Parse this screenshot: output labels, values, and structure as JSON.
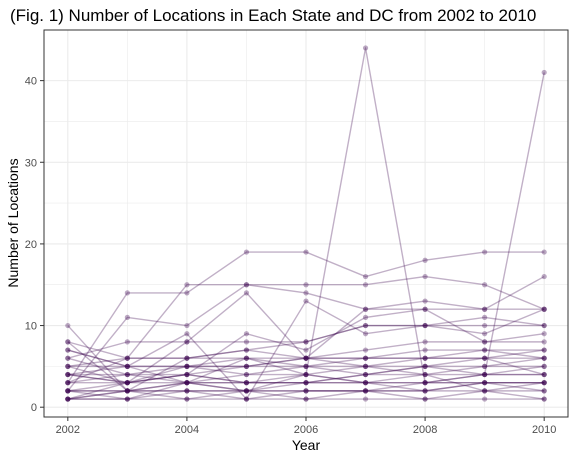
{
  "chart_data": {
    "type": "line",
    "title": "(Fig. 1) Number of Locations in Each State and DC from 2002 to 2010",
    "xlabel": "Year",
    "ylabel": "Number of Locations",
    "x": [
      2002,
      2003,
      2004,
      2005,
      2006,
      2007,
      2008,
      2009,
      2010
    ],
    "xticks": [
      2002,
      2004,
      2006,
      2008,
      2010
    ],
    "yticks": [
      0,
      10,
      20,
      30,
      40
    ],
    "xlim": [
      2001.6,
      2010.4
    ],
    "ylim": [
      -1.2,
      46.2
    ],
    "grid": true,
    "legend": "none",
    "line_color": "#3f0a52",
    "series": [
      {
        "values": [
          10,
          2,
          3,
          2,
          4,
          44,
          3,
          4,
          41
        ]
      },
      {
        "values": [
          3,
          14,
          14,
          19,
          19,
          16,
          18,
          19,
          19
        ]
      },
      {
        "values": [
          2,
          11,
          10,
          15,
          15,
          15,
          16,
          15,
          12
        ]
      },
      {
        "values": [
          8,
          6,
          15,
          15,
          14,
          12,
          13,
          12,
          12
        ]
      },
      {
        "values": [
          6,
          8,
          8,
          14,
          6,
          12,
          12,
          12,
          16
        ]
      },
      {
        "values": [
          7,
          5,
          9,
          1,
          13,
          9,
          10,
          10,
          10
        ]
      },
      {
        "values": [
          4,
          3,
          8,
          8,
          8,
          10,
          10,
          9,
          12
        ]
      },
      {
        "values": [
          1,
          3,
          4,
          9,
          7,
          11,
          12,
          8,
          9
        ]
      },
      {
        "values": [
          5,
          6,
          6,
          7,
          8,
          10,
          10,
          11,
          10
        ]
      },
      {
        "values": [
          3,
          6,
          6,
          7,
          6,
          7,
          8,
          8,
          8
        ]
      },
      {
        "values": [
          7,
          5,
          5,
          5,
          6,
          5,
          6,
          6,
          6
        ]
      },
      {
        "values": [
          8,
          2,
          6,
          6,
          5,
          6,
          6,
          6,
          7
        ]
      },
      {
        "values": [
          5,
          3,
          4,
          5,
          5,
          5,
          5,
          5,
          6
        ]
      },
      {
        "values": [
          4,
          4,
          5,
          4,
          4,
          5,
          4,
          5,
          5
        ]
      },
      {
        "values": [
          2,
          2,
          3,
          3,
          3,
          4,
          4,
          4,
          4
        ]
      },
      {
        "values": [
          3,
          3,
          3,
          3,
          3,
          3,
          3,
          3,
          3
        ]
      },
      {
        "values": [
          2,
          2,
          2,
          2,
          2,
          2,
          2,
          3,
          3
        ]
      },
      {
        "values": [
          1,
          1,
          1,
          1,
          1,
          1,
          1,
          1,
          1
        ]
      },
      {
        "values": [
          1,
          2,
          2,
          2,
          2,
          2,
          3,
          3,
          2
        ]
      },
      {
        "values": [
          4,
          5,
          3,
          6,
          4,
          3,
          3,
          4,
          5
        ]
      },
      {
        "values": [
          6,
          4,
          4,
          3,
          3,
          4,
          5,
          6,
          4
        ]
      },
      {
        "values": [
          2,
          3,
          4,
          3,
          4,
          3,
          4,
          2,
          3
        ]
      },
      {
        "values": [
          1,
          1,
          2,
          1,
          2,
          2,
          2,
          2,
          2
        ]
      },
      {
        "values": [
          3,
          4,
          3,
          4,
          5,
          4,
          5,
          4,
          4
        ]
      },
      {
        "values": [
          5,
          5,
          5,
          6,
          6,
          6,
          7,
          7,
          7
        ]
      },
      {
        "values": [
          2,
          1,
          3,
          2,
          3,
          3,
          2,
          3,
          3
        ]
      },
      {
        "values": [
          4,
          3,
          5,
          5,
          6,
          6,
          6,
          7,
          6
        ]
      },
      {
        "values": [
          1,
          2,
          1,
          2,
          1,
          2,
          1,
          2,
          1
        ]
      }
    ]
  }
}
